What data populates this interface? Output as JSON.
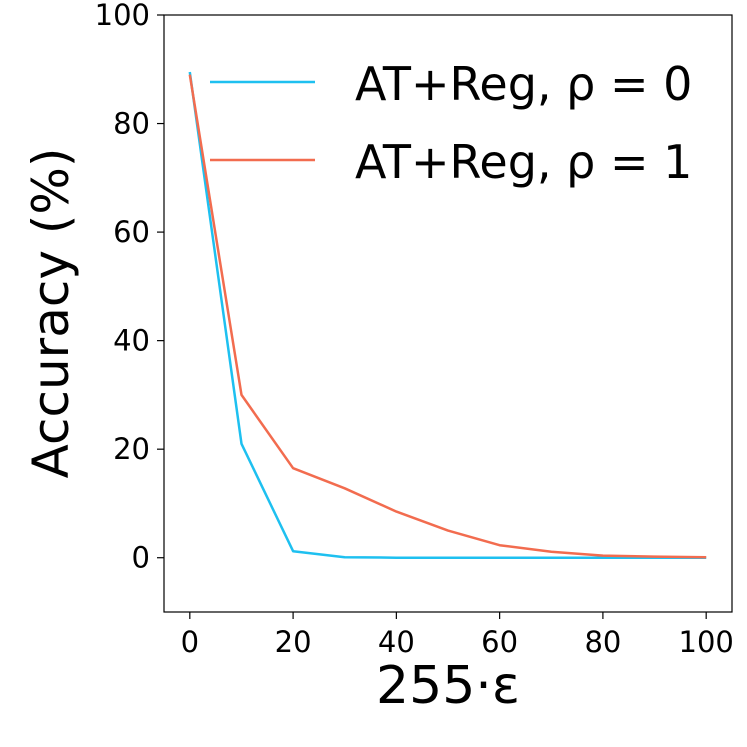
{
  "chart_data": {
    "type": "line",
    "title": "",
    "xlabel": "255·ε",
    "ylabel": "Accuracy (%)",
    "xlim": [
      -5,
      105
    ],
    "ylim": [
      -10,
      100
    ],
    "xticks": [
      0,
      20,
      40,
      60,
      80,
      100
    ],
    "yticks": [
      0,
      20,
      40,
      60,
      80,
      100
    ],
    "grid": false,
    "legend_position": "top-right",
    "series": [
      {
        "name": "AT+Reg, ρ = 0",
        "color": "#1ec0f0",
        "x": [
          0,
          10,
          20,
          30,
          40,
          50,
          60,
          70,
          80,
          90,
          100
        ],
        "y": [
          89.5,
          21,
          1.2,
          0.1,
          0.0,
          0.0,
          0.0,
          0.0,
          0.0,
          0.0,
          0.0
        ]
      },
      {
        "name": "AT+Reg, ρ = 1",
        "color": "#f26c4f",
        "x": [
          0,
          10,
          20,
          30,
          40,
          50,
          60,
          70,
          80,
          90,
          100
        ],
        "y": [
          89,
          30,
          16.5,
          12.8,
          8.5,
          5.0,
          2.3,
          1.1,
          0.4,
          0.2,
          0.1
        ]
      }
    ]
  }
}
